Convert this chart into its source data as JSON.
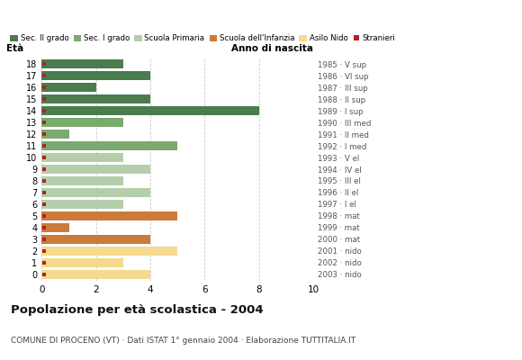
{
  "ages": [
    18,
    17,
    16,
    15,
    14,
    13,
    12,
    11,
    10,
    9,
    8,
    7,
    6,
    5,
    4,
    3,
    2,
    1,
    0
  ],
  "anno_nascita": [
    "1985 · V sup",
    "1986 · VI sup",
    "1987 · III sup",
    "1988 · II sup",
    "1989 · I sup",
    "1990 · III med",
    "1991 · II med",
    "1992 · I med",
    "1993 · V el",
    "1994 · IV el",
    "1995 · III el",
    "1996 · II el",
    "1997 · I el",
    "1998 · mat",
    "1999 · mat",
    "2000 · mat",
    "2001 · nido",
    "2002 · nido",
    "2003 · nido"
  ],
  "values": [
    3,
    4,
    2,
    4,
    8,
    3,
    1,
    5,
    3,
    4,
    3,
    4,
    3,
    5,
    1,
    4,
    5,
    3,
    4
  ],
  "bar_colors": [
    "#4a7c4e",
    "#4a7c4e",
    "#4a7c4e",
    "#4a7c4e",
    "#4a7c4e",
    "#7aaa6e",
    "#7aaa6e",
    "#7aaa6e",
    "#b5ceaa",
    "#b5ceaa",
    "#b5ceaa",
    "#b5ceaa",
    "#b5ceaa",
    "#cc7a3a",
    "#cc7a3a",
    "#cc7a3a",
    "#f5d98e",
    "#f5d98e",
    "#f5d98e"
  ],
  "legend_labels": [
    "Sec. II grado",
    "Sec. I grado",
    "Scuola Primaria",
    "Scuola dell'Infanzia",
    "Asilo Nido",
    "Stranieri"
  ],
  "legend_colors": [
    "#4a7c4e",
    "#7aaa6e",
    "#b5ceaa",
    "#cc7a3a",
    "#f5d98e",
    "#b22222"
  ],
  "title": "Popolazione per età scolastica - 2004",
  "subtitle": "COMUNE DI PROCENO (VT) · Dati ISTAT 1° gennaio 2004 · Elaborazione TUTTITALIA.IT",
  "xlabel_left": "Età",
  "xlabel_right": "Anno di nascita",
  "xlim": [
    0,
    10
  ],
  "xticks": [
    0,
    2,
    4,
    6,
    8,
    10
  ],
  "background_color": "#ffffff",
  "grid_color": "#cccccc",
  "bar_height": 0.72,
  "stranieri_color": "#b22222"
}
